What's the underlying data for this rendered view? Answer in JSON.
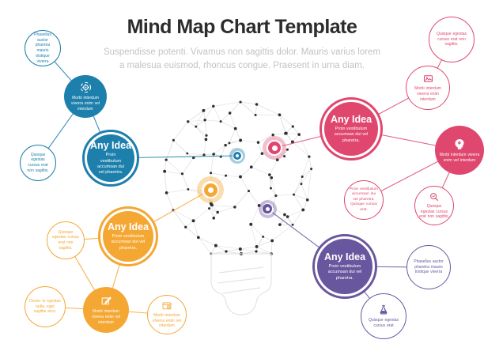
{
  "header": {
    "title": "Mind Map Chart Template",
    "subtitle_line1": "Suspendisse potenti. Vivamus non sagittis dolor. Mauris varius lorem",
    "subtitle_line2": "a malesua euismod, rhoncus congue. Praesent in urna diam."
  },
  "colors": {
    "blue": "#1d7fac",
    "orange": "#f5a733",
    "pink": "#e0476e",
    "purple": "#68579e",
    "mesh_line": "#e2e2e2",
    "mesh_dot": "#2f2f2f",
    "bulb_base": "#e4e4e4"
  },
  "clusters": {
    "blue": {
      "any_title": "Any Idea",
      "any_body": "Proin vestibulum accumsan dui vel pharetra.",
      "hub_body": "Morbi interdum viverra enim vel interdum",
      "hub_icon": "gear-icon",
      "leaf_top": "Phasellus auctor pharetra mauris tristique viverra",
      "leaf_bottom": "Quisque egestas cursus erat non sagittis."
    },
    "orange": {
      "any_title": "Any Idea",
      "any_body": "Proin vestibulum accumsan dui vel pharetra.",
      "hub_body": "Morbi interdum viverra enim vel interdum",
      "hub_icon": "design-pencil-icon",
      "leaf_upper": "Quisque egestas cursus erat non sagittis.",
      "leaf_left": "Donec in egestas nulla, eget sagittis arcu.",
      "leaf_right": "Morbi interdum viverra enim vel interdum",
      "leaf_right_icon": "secure-window-icon"
    },
    "pink": {
      "any_title": "Any Idea",
      "any_body": "Proin vestibulum accumsan dui vel pharetra.",
      "leaf_top": "Quisque egestas cursus erat non sagittis.",
      "camera_body": "Morbi interdum viverra enim interdum",
      "camera_icon": "photo-icon",
      "hub_body": "Morbi interdum viverra enim vel interdum",
      "hub_icon": "idea-head-icon",
      "leaf_proin": "Proin vestibulum accumsan dui vel pharetra. Quisque cursus erat.",
      "leaf_search": "Quisque egestas cursus erat non sagittis.",
      "leaf_search_icon": "search-icon"
    },
    "purple": {
      "any_title": "Any Idea",
      "any_body": "Proin vestibulum accumsan dui vel pharetra.",
      "leaf_right": "Phasellus auctor pharetra mauris tristique viverra",
      "leaf_flask": "Quisque egestas cursus erat",
      "leaf_flask_icon": "flask-icon"
    }
  },
  "center_graphic": "low-poly light bulb network"
}
